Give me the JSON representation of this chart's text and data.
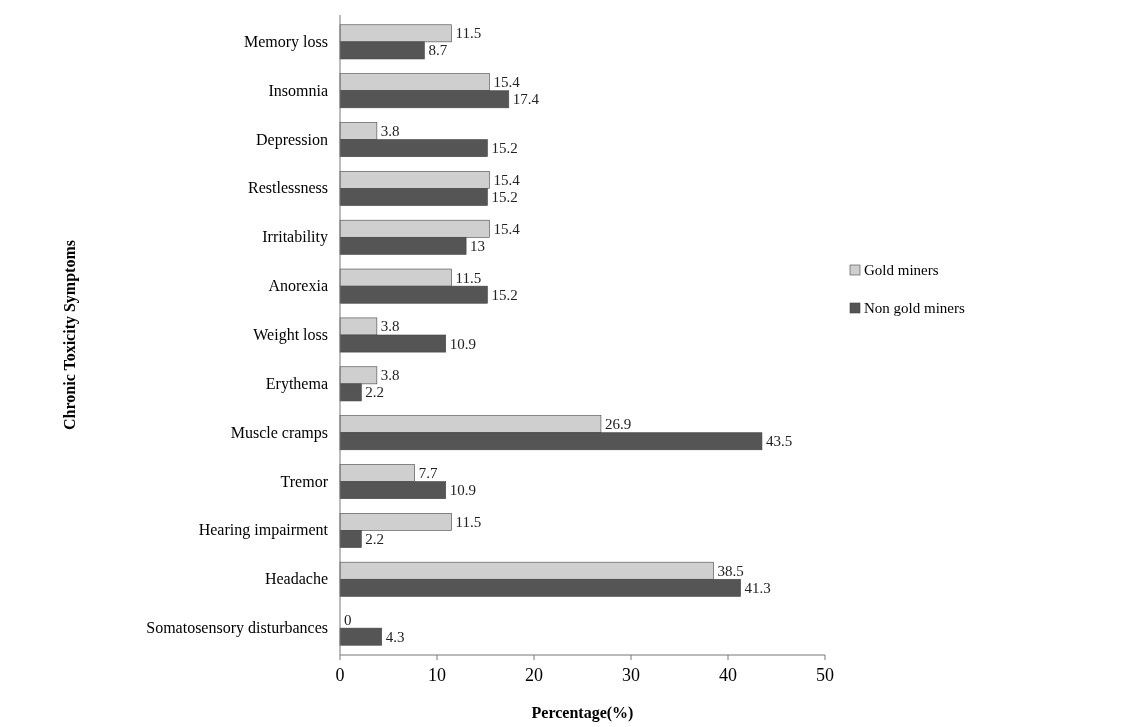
{
  "chart_data": {
    "type": "bar",
    "orientation": "horizontal",
    "xlabel": "Percentage(%)",
    "ylabel": "Chronic Toxicity Symptoms",
    "categories": [
      "Memory loss",
      "Insomnia",
      "Depression",
      "Restlessness",
      "Irritability",
      "Anorexia",
      "Weight loss",
      "Erythema",
      "Muscle cramps",
      "Tremor",
      "Hearing impairment",
      "Headache",
      "Somatosensory disturbances"
    ],
    "series": [
      {
        "name": "Gold miners",
        "color": "#cfcfcf",
        "values": [
          11.5,
          15.4,
          3.8,
          15.4,
          15.4,
          11.5,
          3.8,
          3.8,
          26.9,
          7.7,
          11.5,
          38.5,
          0
        ]
      },
      {
        "name": "Non gold miners",
        "color": "#555555",
        "values": [
          8.7,
          17.4,
          15.2,
          15.2,
          13,
          15.2,
          10.9,
          2.2,
          43.5,
          10.9,
          2.2,
          41.3,
          4.3
        ]
      }
    ],
    "xlim": [
      0,
      50
    ],
    "xticks": [
      0,
      10,
      20,
      30,
      40,
      50
    ],
    "data_labels": true,
    "legend": "right"
  }
}
